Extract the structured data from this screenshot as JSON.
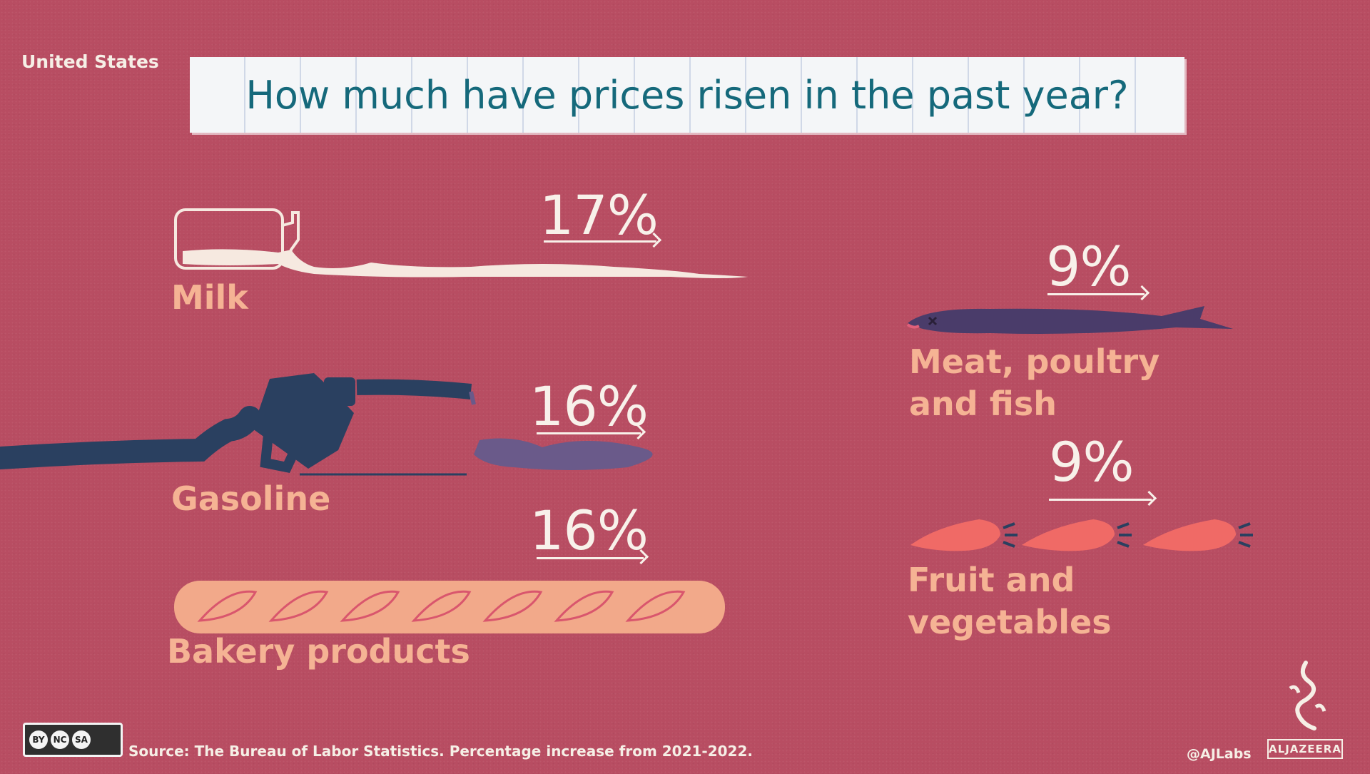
{
  "header": {
    "country": "United States",
    "title": "How much have prices risen in the past year?"
  },
  "footer": {
    "source": "Source: The Bureau of Labor Statistics. Percentage increase from 2021-2022.",
    "license_badges": [
      "BY",
      "NC",
      "SA"
    ],
    "handle": "@AJLabs",
    "brand": "ALJAZEERA"
  },
  "chart_data": {
    "type": "bar",
    "title": "How much have prices risen in the past year?",
    "subtitle": "United States",
    "categories": [
      "Milk",
      "Gasoline",
      "Bakery products",
      "Meat, poultry and fish",
      "Fruit and vegetables"
    ],
    "values": [
      17,
      16,
      16,
      9,
      9
    ],
    "value_labels": [
      "17%",
      "16%",
      "16%",
      "9%",
      "9%"
    ],
    "unit": "%",
    "legend": "none",
    "grid": false,
    "colors": {
      "background": "#b84d62",
      "title": "#15697b",
      "label": "#f5b394",
      "value": "#f8f1ea",
      "milk": "#f6e9e0",
      "gasoline": "#2a4060",
      "bread": "#f2a98a",
      "fish": "#4a3c6a",
      "carrot": "#f06a66"
    },
    "icons": [
      "milk-bottle-icon",
      "fuel-pump-nozzle-icon",
      "baguette-icon",
      "fish-icon",
      "carrot-icon"
    ]
  }
}
